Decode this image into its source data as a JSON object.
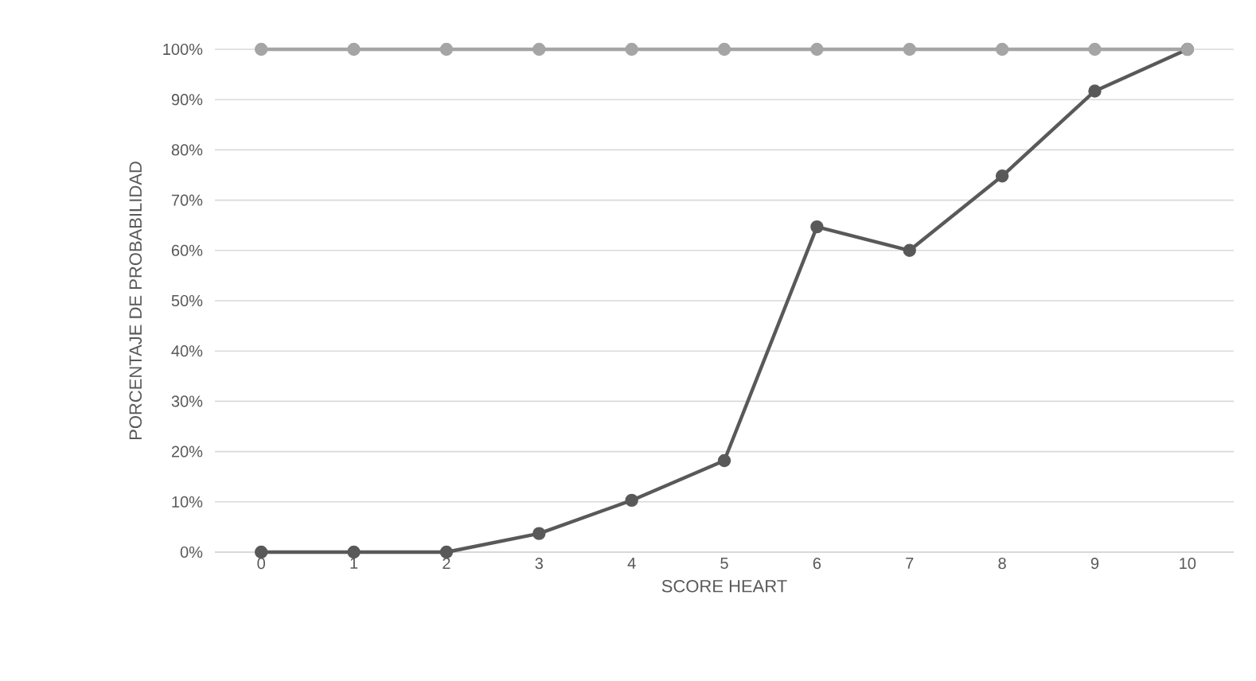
{
  "chart_data": {
    "type": "line",
    "xlabel": "SCORE HEART",
    "ylabel": "PORCENTAJE DE PROBABILIDAD",
    "categories": [
      "0",
      "1",
      "2",
      "3",
      "4",
      "5",
      "6",
      "7",
      "8",
      "9",
      "10"
    ],
    "series": [
      {
        "color": "#a5a5a5",
        "values": [
          100,
          100,
          100,
          100,
          100,
          100,
          100,
          100,
          100,
          100,
          100
        ]
      },
      {
        "color": "#595959",
        "values": [
          0,
          0,
          0,
          3.7,
          10.3,
          18.2,
          64.7,
          60,
          74.8,
          91.7,
          100
        ]
      }
    ],
    "ylim": [
      0,
      100
    ],
    "yticks": [
      {
        "value": 0,
        "label": "0%"
      },
      {
        "value": 10,
        "label": "10%"
      },
      {
        "value": 20,
        "label": "20%"
      },
      {
        "value": 30,
        "label": "30%"
      },
      {
        "value": 40,
        "label": "40%"
      },
      {
        "value": 50,
        "label": "50%"
      },
      {
        "value": 60,
        "label": "60%"
      },
      {
        "value": 70,
        "label": "70%"
      },
      {
        "value": 80,
        "label": "80%"
      },
      {
        "value": 90,
        "label": "90%"
      },
      {
        "value": 100,
        "label": "100%"
      }
    ],
    "grid": "y",
    "marker": "circle",
    "line_style": "solid",
    "legend": false
  }
}
